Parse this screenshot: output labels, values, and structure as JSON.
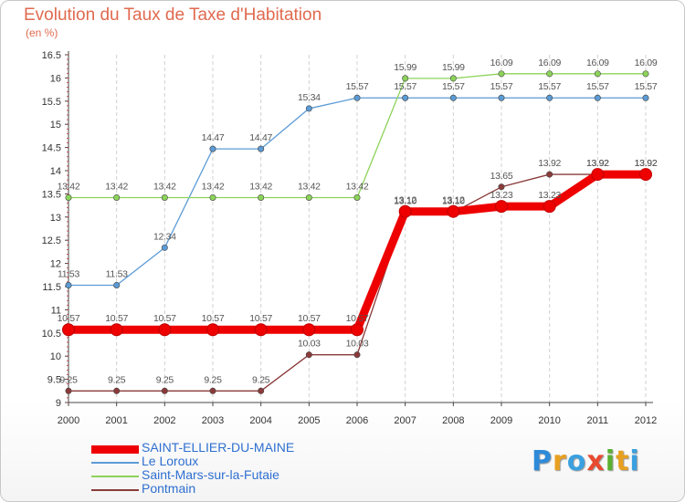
{
  "title": "Evolution du Taux de Taxe d'Habitation",
  "unit": "(en %)",
  "colors": {
    "title": "#e06a4f",
    "legend_text": "#2e6fd0"
  },
  "logo": {
    "letters": [
      {
        "ch": "P",
        "color": "#2e8ad8"
      },
      {
        "ch": "r",
        "color": "#e8a020"
      },
      {
        "ch": "o",
        "color": "#3aa0e0"
      },
      {
        "ch": "x",
        "color": "#e84a30"
      },
      {
        "ch": "i",
        "color": "#5ab030"
      },
      {
        "ch": "t",
        "color": "#e8a020"
      },
      {
        "ch": "i",
        "color": "#3aa0e0"
      }
    ]
  },
  "chart_data": {
    "type": "line",
    "title": "Evolution du Taux de Taxe d'Habitation",
    "ylabel": "(en %)",
    "xlabel": "",
    "x": [
      "2000",
      "2001",
      "2002",
      "2003",
      "2004",
      "2005",
      "2006",
      "2007",
      "2008",
      "2009",
      "2010",
      "2011",
      "2012"
    ],
    "ylim": [
      9,
      16.5
    ],
    "yticks": [
      "9",
      "9.5",
      "10",
      "10.5",
      "11",
      "11.5",
      "12",
      "12.5",
      "13",
      "13.5",
      "14",
      "14.5",
      "15",
      "15.5",
      "16",
      "16.5"
    ],
    "grid": "vertical dashed",
    "legend_position": "bottom-left",
    "series": [
      {
        "name": "SAINT-ELLIER-DU-MAINE",
        "color": "#ee0000",
        "values": [
          10.57,
          10.57,
          10.57,
          10.57,
          10.57,
          10.57,
          10.57,
          13.12,
          13.12,
          13.23,
          13.23,
          13.92,
          13.92
        ],
        "labels": [
          "10.57",
          "10.57",
          "10.57",
          "10.57",
          "10.57",
          "10.57",
          "10.57",
          "13.12",
          "13.12",
          "13.23",
          "13.23",
          "13.92",
          "13.92"
        ]
      },
      {
        "name": "Le Loroux",
        "color": "#5b9bd5",
        "values": [
          11.53,
          11.53,
          12.34,
          14.47,
          14.47,
          15.34,
          15.57,
          15.57,
          15.57,
          15.57,
          15.57,
          15.57,
          15.57
        ],
        "labels": [
          "11.53",
          "11.53",
          "12.34",
          "14.47",
          "14.47",
          "15.34",
          "15.57",
          "15.57",
          "15.57",
          "15.57",
          "15.57",
          "15.57",
          "15.57"
        ]
      },
      {
        "name": "Saint-Mars-sur-la-Futaie",
        "color": "#8cd35a",
        "values": [
          13.42,
          13.42,
          13.42,
          13.42,
          13.42,
          13.42,
          13.42,
          15.99,
          15.99,
          16.09,
          16.09,
          16.09,
          16.09
        ],
        "labels": [
          "13.42",
          "13.42",
          "13.42",
          "13.42",
          "13.42",
          "13.42",
          "13.42",
          "15.99",
          "15.99",
          "16.09",
          "16.09",
          "16.09",
          "16.09"
        ]
      },
      {
        "name": "Pontmain",
        "color": "#8b3a3a",
        "values": [
          9.25,
          9.25,
          9.25,
          9.25,
          9.25,
          10.03,
          10.03,
          13.1,
          13.1,
          13.65,
          13.92,
          13.92,
          13.92
        ],
        "labels": [
          "9.25",
          "9.25",
          "9.25",
          "9.25",
          "9.25",
          "10.03",
          "10.03",
          "13.10",
          "13.10",
          "13.65",
          "13.92",
          "13.92",
          "13.92"
        ]
      }
    ]
  }
}
